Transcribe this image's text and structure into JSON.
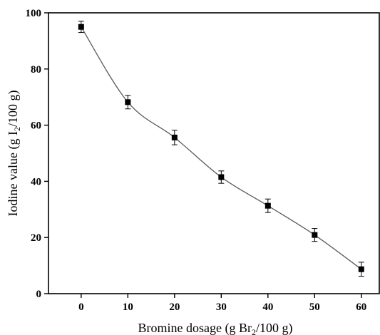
{
  "chart_data": {
    "type": "scatter",
    "title": "",
    "xlabel": {
      "before": "Bromine dosage (g Br",
      "subscript": "2",
      "after": "/100 g)"
    },
    "ylabel": {
      "before": "Iodine value (g I",
      "subscript": "2",
      "after": "/100 g)"
    },
    "xlim": [
      -7,
      64
    ],
    "ylim": [
      0,
      100
    ],
    "xticks": [
      "0",
      "10",
      "20",
      "30",
      "40",
      "50",
      "60"
    ],
    "yticks": [
      "0",
      "20",
      "40",
      "60",
      "80",
      "100"
    ],
    "marker": "square",
    "smooth_line": true,
    "grid": false,
    "colors": {
      "line": "#5a5a5a",
      "marker": "#000000"
    },
    "series": [
      {
        "x": [
          0,
          10,
          20,
          30,
          40,
          50,
          60
        ],
        "y": [
          95.0,
          68.2,
          55.6,
          41.5,
          31.3,
          20.9,
          8.7
        ],
        "error": [
          2.0,
          2.4,
          2.6,
          2.2,
          2.4,
          2.3,
          2.5
        ]
      }
    ]
  }
}
